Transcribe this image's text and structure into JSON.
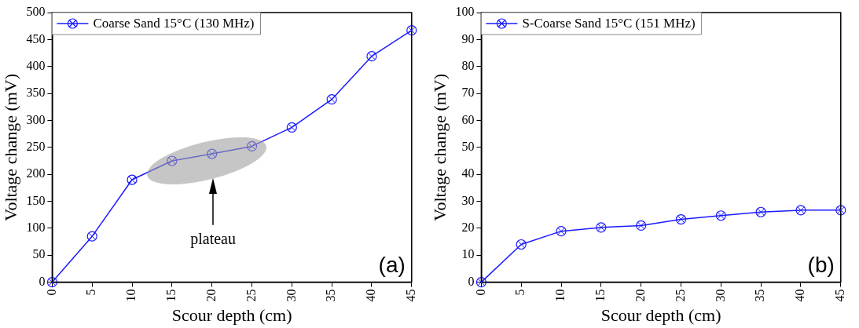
{
  "chart_data": [
    {
      "type": "line",
      "xlabel": "Scour depth (cm)",
      "ylabel": "Voltage change (mV)",
      "x": [
        0,
        5,
        10,
        15,
        20,
        25,
        30,
        35,
        40,
        45
      ],
      "series": [
        {
          "name": "Coarse Sand 15°C (130 MHz)",
          "color": "#1a1aff",
          "values": [
            0,
            85,
            190,
            225,
            238,
            252,
            287,
            339,
            419,
            467
          ]
        }
      ],
      "xlim": [
        0,
        45
      ],
      "xticks": [
        0,
        5,
        10,
        15,
        20,
        25,
        30,
        35,
        40,
        45
      ],
      "ylim": [
        0,
        500
      ],
      "yticks": [
        0,
        50,
        100,
        150,
        200,
        250,
        300,
        350,
        400,
        450,
        500
      ],
      "grid": false,
      "legend": "top left",
      "marker": "circle",
      "line_style": "solid",
      "annotations": [
        "plateau",
        "(a)"
      ]
    },
    {
      "type": "line",
      "xlabel": "Scour depth (cm)",
      "ylabel": "Voltage change (mV)",
      "x": [
        0,
        5,
        10,
        15,
        20,
        25,
        30,
        35,
        40,
        45
      ],
      "series": [
        {
          "name": "S-Coarse Sand 15°C (151 MHz)",
          "color": "#1a1aff",
          "values": [
            0,
            14.0,
            18.9,
            20.3,
            21.0,
            23.3,
            24.7,
            26.0,
            26.7,
            26.7
          ]
        }
      ],
      "xlim": [
        0,
        45
      ],
      "xticks": [
        0,
        5,
        10,
        15,
        20,
        25,
        30,
        35,
        40,
        45
      ],
      "ylim": [
        0,
        100
      ],
      "yticks": [
        0,
        10,
        20,
        30,
        40,
        50,
        60,
        70,
        80,
        90,
        100
      ],
      "grid": false,
      "legend": "top left",
      "marker": "circle",
      "line_style": "solid",
      "annotations": [
        "(b)"
      ]
    }
  ]
}
